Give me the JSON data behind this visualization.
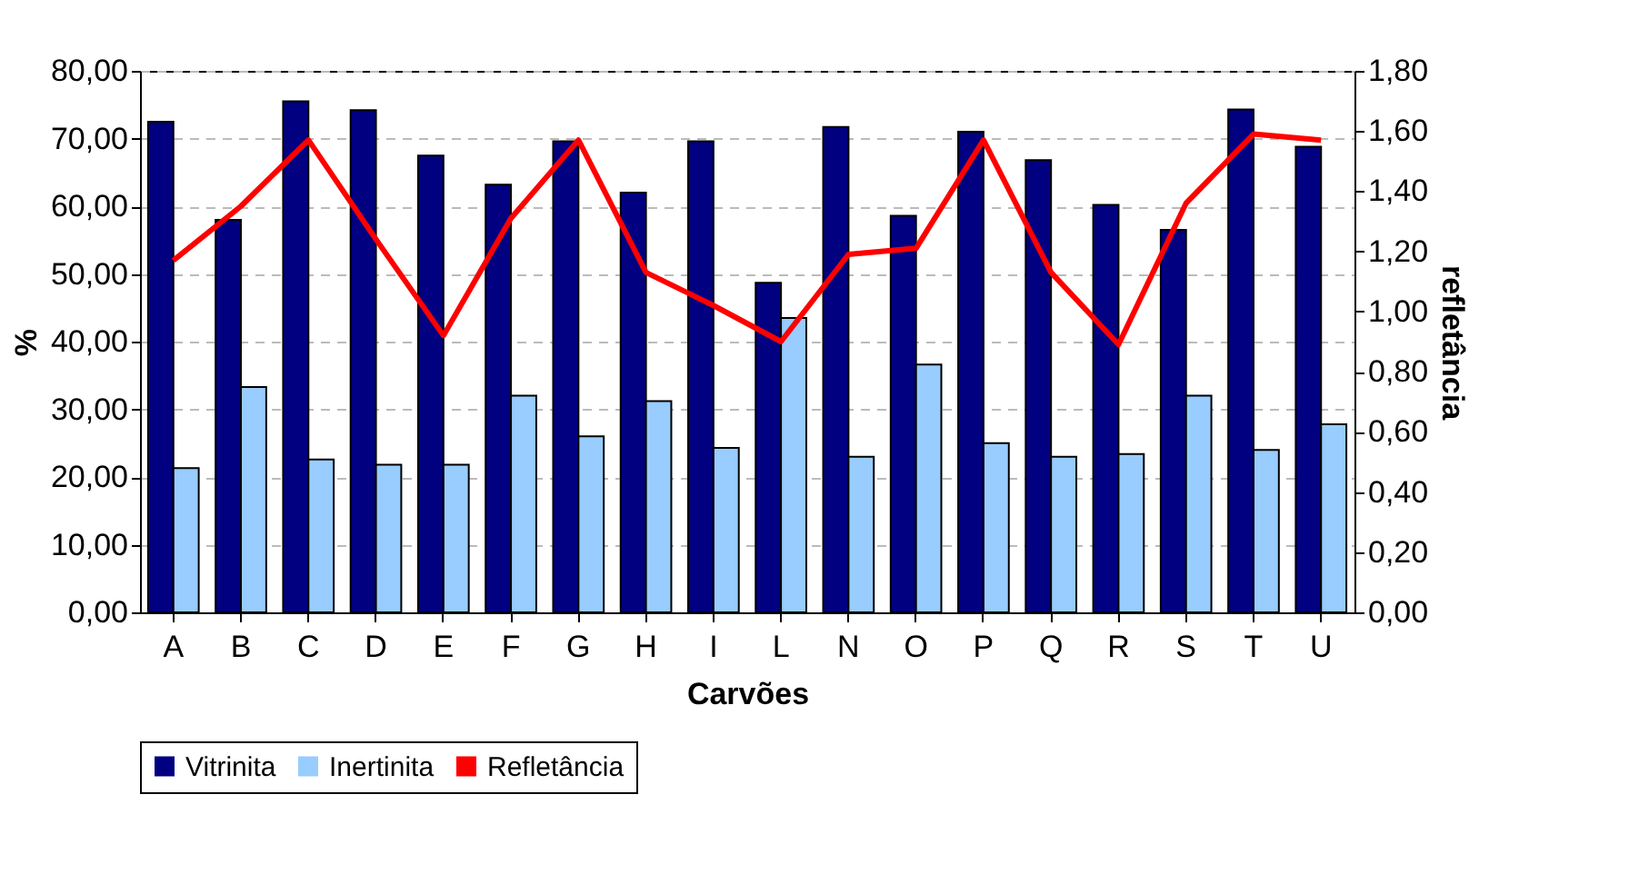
{
  "chart_data": {
    "type": "bar",
    "xlabel": "Carvões",
    "ylabel": "%",
    "y2label": "refletância",
    "categories": [
      "A",
      "B",
      "C",
      "D",
      "E",
      "F",
      "G",
      "H",
      "I",
      "L",
      "N",
      "O",
      "P",
      "Q",
      "R",
      "S",
      "T",
      "U"
    ],
    "series": [
      {
        "name": "Vitrinita",
        "color": "#000080",
        "values": [
          72.5,
          58.0,
          75.5,
          74.2,
          67.5,
          63.2,
          69.6,
          62.0,
          69.6,
          48.7,
          71.7,
          58.6,
          71.0,
          66.8,
          60.2,
          56.5,
          74.3,
          68.8
        ]
      },
      {
        "name": "Inertinita",
        "color": "#99ccff",
        "values": [
          21.3,
          33.3,
          22.6,
          21.8,
          21.8,
          32.0,
          26.0,
          31.2,
          24.3,
          43.5,
          23.0,
          36.6,
          25.0,
          23.0,
          23.4,
          32.0,
          24.0,
          27.8
        ]
      },
      {
        "name": "Refletância",
        "color": "#ff0000",
        "type": "line",
        "axis": "y2",
        "values": [
          1.17,
          1.35,
          1.57,
          1.24,
          0.92,
          1.31,
          1.57,
          1.13,
          1.02,
          0.9,
          1.19,
          1.21,
          1.57,
          1.13,
          0.89,
          1.36,
          1.59,
          1.57
        ]
      }
    ],
    "ylim": [
      0,
      80
    ],
    "yticks": [
      {
        "value": 0,
        "label": "0,00"
      },
      {
        "value": 10,
        "label": "10,00"
      },
      {
        "value": 20,
        "label": "20,00"
      },
      {
        "value": 30,
        "label": "30,00"
      },
      {
        "value": 40,
        "label": "40,00"
      },
      {
        "value": 50,
        "label": "50,00"
      },
      {
        "value": 60,
        "label": "60,00"
      },
      {
        "value": 70,
        "label": "70,00"
      },
      {
        "value": 80,
        "label": "80,00"
      }
    ],
    "y2lim": [
      0,
      1.8
    ],
    "y2ticks": [
      {
        "value": 0,
        "label": "0,00"
      },
      {
        "value": 0.2,
        "label": "0,20"
      },
      {
        "value": 0.4,
        "label": "0,40"
      },
      {
        "value": 0.6,
        "label": "0,60"
      },
      {
        "value": 0.8,
        "label": "0,80"
      },
      {
        "value": 1.0,
        "label": "1,00"
      },
      {
        "value": 1.2,
        "label": "1,20"
      },
      {
        "value": 1.4,
        "label": "1,40"
      },
      {
        "value": 1.6,
        "label": "1,60"
      },
      {
        "value": 1.8,
        "label": "1,80"
      }
    ],
    "grid": "y",
    "legend": "bottom",
    "marker": "none",
    "line_style": "solid"
  }
}
